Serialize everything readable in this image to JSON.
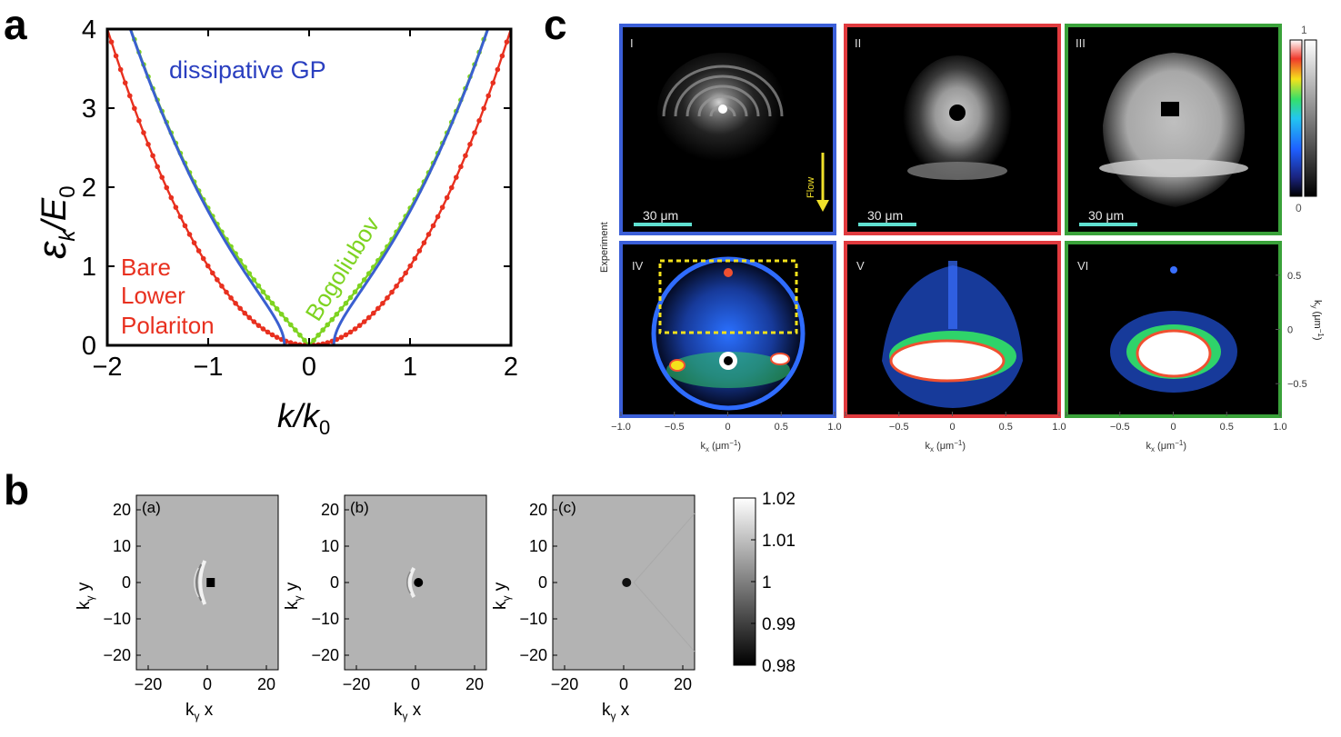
{
  "panels": {
    "a": {
      "letter": "a",
      "chart_data": {
        "type": "line",
        "xlabel": "k/k",
        "xlabel_sub": "0",
        "ylabel": "ε",
        "ylabel_sub1": "k",
        "ylabel_mid": "/E",
        "ylabel_sub2": "0",
        "xlim": [
          -2,
          2
        ],
        "ylim": [
          0,
          4
        ],
        "xticks": [
          "−2",
          "−1",
          "0",
          "1",
          "2"
        ],
        "yticks": [
          "0",
          "1",
          "2",
          "3",
          "4"
        ],
        "series": [
          {
            "name": "Bare Lower Polariton",
            "label_lines": [
              "Bare",
              "Lower",
              "Polariton"
            ],
            "color": "#e8301f",
            "style": "dotted-line",
            "formula": "E = k^2"
          },
          {
            "name": "Bogoliubov",
            "color": "#7ed321",
            "style": "dotted-line",
            "formula": "E = sqrt(k^2 (k^2 + 2 mu)), mu = 1"
          },
          {
            "name": "dissipative GP",
            "color": "#3a5fd0",
            "style": "solid",
            "formula": "E = sqrt(k^2 (k^2 + 2) - g^2), g = 0.35"
          }
        ]
      }
    },
    "b": {
      "letter": "b",
      "subplots": [
        {
          "label": "(a)"
        },
        {
          "label": "(b)"
        },
        {
          "label": "(c)"
        }
      ],
      "ylabel": "k",
      "ylabel_sub": "γ",
      "ylabel_var": "y",
      "xlabel": "k",
      "xlabel_sub": "γ",
      "xlabel_var": "x",
      "xticks": [
        "−20",
        "0",
        "20"
      ],
      "yticks": [
        "20",
        "10",
        "0",
        "−10",
        "−20"
      ],
      "colorbar_ticks": [
        "1.02",
        "1.01",
        "1",
        "0.99",
        "0.98"
      ]
    },
    "c": {
      "letter": "c",
      "top_tiles": [
        {
          "label": "I",
          "scale": "30 μm",
          "border": "#3b5fd8"
        },
        {
          "label": "II",
          "scale": "30 μm",
          "border": "#e03a3e"
        },
        {
          "label": "III",
          "scale": "30 μm",
          "border": "#3aa23a"
        }
      ],
      "bottom_tiles": [
        {
          "label": "IV",
          "border": "#3b5fd8"
        },
        {
          "label": "V",
          "border": "#e03a3e"
        },
        {
          "label": "VI",
          "border": "#3aa23a"
        }
      ],
      "flow_label": "Flow",
      "side_label": "Experiment",
      "colorbar_top": "1",
      "colorbar_bottom": "0",
      "xticks": [
        "−1.0",
        "−0.5",
        "0",
        "0.5",
        "1.0"
      ],
      "xlabel": "k",
      "xlabel_sub": "x",
      "xlabel_unit": " (μm",
      "xlabel_exp": "−1",
      "xlabel_close": ")",
      "yticks": [
        "0.5",
        "0",
        "−0.5"
      ],
      "ylabel": "k",
      "ylabel_sub": "y",
      "ylabel_unit": " (μm",
      "ylabel_exp": "−1",
      "ylabel_close": ")"
    }
  }
}
